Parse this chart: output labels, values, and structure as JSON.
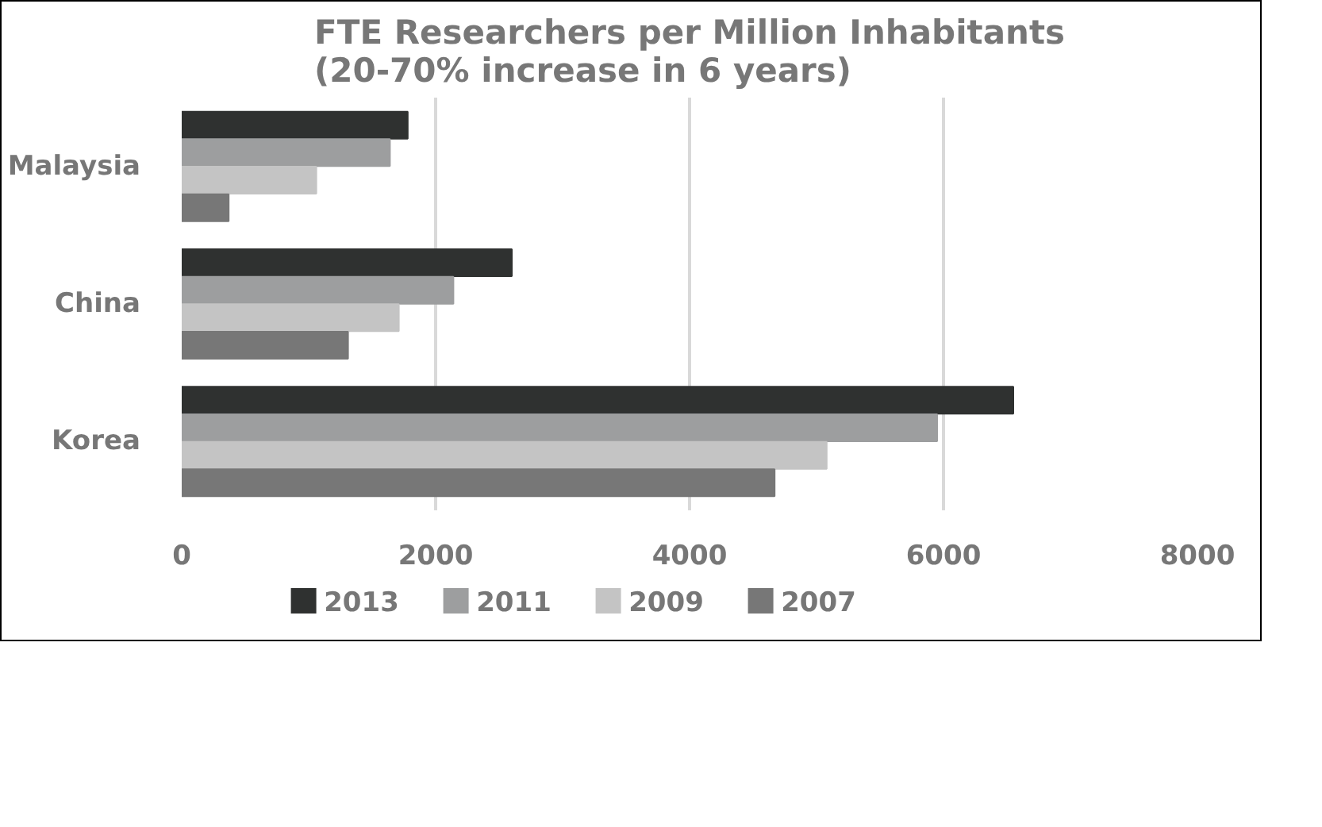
{
  "chart_data": {
    "type": "bar",
    "orientation": "horizontal",
    "title": "FTE Researchers per Million Inhabitants\n(20-70% increase in 6 years)",
    "categories": [
      "Malaysia",
      "China",
      "Korea"
    ],
    "series": [
      {
        "name": "2013",
        "color": "#2f3130",
        "values": [
          1780,
          2600,
          6550
        ]
      },
      {
        "name": "2011",
        "color": "#9d9e9f",
        "values": [
          1640,
          2140,
          5950
        ]
      },
      {
        "name": "2009",
        "color": "#c4c4c4",
        "values": [
          1060,
          1710,
          5080
        ]
      },
      {
        "name": "2007",
        "color": "#777777",
        "values": [
          370,
          1310,
          4670
        ]
      }
    ],
    "xlim": [
      0,
      8000
    ],
    "xticks": [
      0,
      2000,
      4000,
      6000,
      8000
    ],
    "grid": "x",
    "legend": "bottom"
  }
}
